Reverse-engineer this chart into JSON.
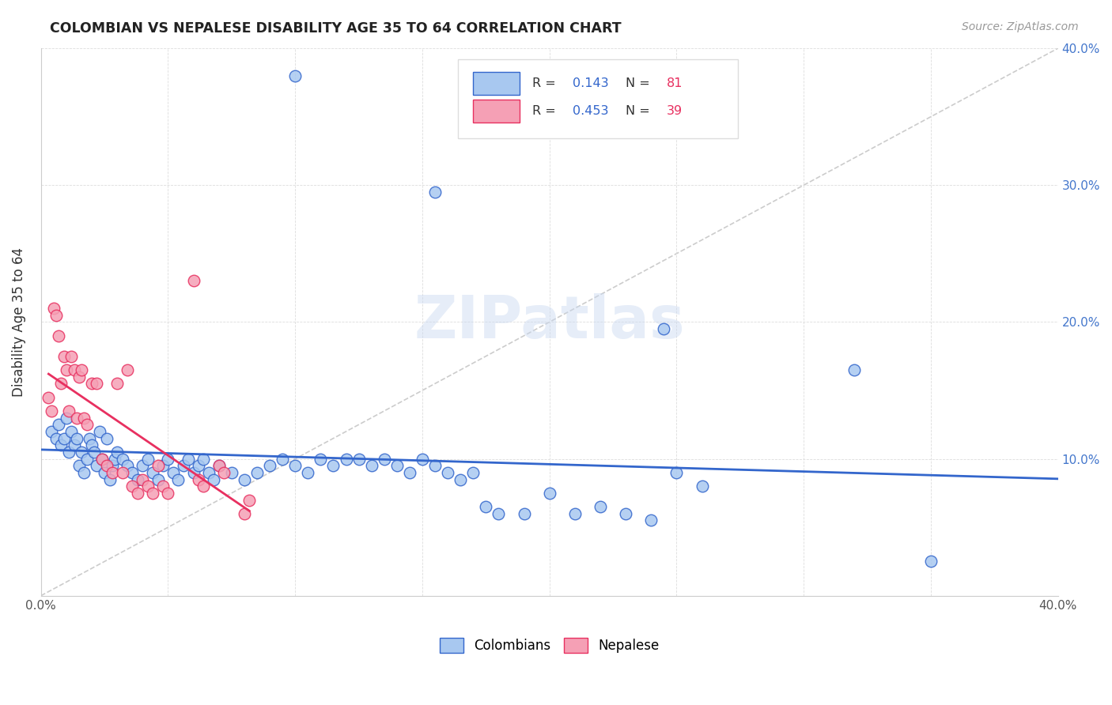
{
  "title": "COLOMBIAN VS NEPALESE DISABILITY AGE 35 TO 64 CORRELATION CHART",
  "source": "Source: ZipAtlas.com",
  "ylabel": "Disability Age 35 to 64",
  "xlim": [
    0.0,
    0.4
  ],
  "ylim": [
    0.0,
    0.4
  ],
  "legend_r1": "0.143",
  "legend_n1": "81",
  "legend_r2": "0.453",
  "legend_n2": "39",
  "color_colombian": "#A8C8F0",
  "color_nepalese": "#F5A0B5",
  "color_line_colombian": "#3366CC",
  "color_line_nepalese": "#E83060",
  "color_diagonal": "#CCCCCC",
  "colombian_x": [
    0.004,
    0.006,
    0.007,
    0.008,
    0.009,
    0.01,
    0.011,
    0.012,
    0.013,
    0.014,
    0.015,
    0.016,
    0.017,
    0.018,
    0.019,
    0.02,
    0.021,
    0.022,
    0.023,
    0.024,
    0.025,
    0.026,
    0.027,
    0.028,
    0.029,
    0.03,
    0.032,
    0.034,
    0.036,
    0.038,
    0.04,
    0.042,
    0.044,
    0.046,
    0.048,
    0.05,
    0.052,
    0.054,
    0.056,
    0.058,
    0.06,
    0.062,
    0.064,
    0.066,
    0.068,
    0.07,
    0.075,
    0.08,
    0.085,
    0.09,
    0.095,
    0.1,
    0.105,
    0.11,
    0.115,
    0.12,
    0.125,
    0.13,
    0.135,
    0.14,
    0.145,
    0.15,
    0.155,
    0.16,
    0.165,
    0.17,
    0.175,
    0.18,
    0.19,
    0.2,
    0.21,
    0.22,
    0.23,
    0.24,
    0.25,
    0.26,
    0.32,
    0.35,
    0.155,
    0.245,
    0.1
  ],
  "colombian_y": [
    0.12,
    0.115,
    0.125,
    0.11,
    0.115,
    0.13,
    0.105,
    0.12,
    0.11,
    0.115,
    0.095,
    0.105,
    0.09,
    0.1,
    0.115,
    0.11,
    0.105,
    0.095,
    0.12,
    0.1,
    0.09,
    0.115,
    0.085,
    0.095,
    0.1,
    0.105,
    0.1,
    0.095,
    0.09,
    0.085,
    0.095,
    0.1,
    0.09,
    0.085,
    0.095,
    0.1,
    0.09,
    0.085,
    0.095,
    0.1,
    0.09,
    0.095,
    0.1,
    0.09,
    0.085,
    0.095,
    0.09,
    0.085,
    0.09,
    0.095,
    0.1,
    0.095,
    0.09,
    0.1,
    0.095,
    0.1,
    0.1,
    0.095,
    0.1,
    0.095,
    0.09,
    0.1,
    0.095,
    0.09,
    0.085,
    0.09,
    0.065,
    0.06,
    0.06,
    0.075,
    0.06,
    0.065,
    0.06,
    0.055,
    0.09,
    0.08,
    0.165,
    0.025,
    0.295,
    0.195,
    0.38
  ],
  "nepalese_x": [
    0.003,
    0.004,
    0.005,
    0.006,
    0.007,
    0.008,
    0.009,
    0.01,
    0.011,
    0.012,
    0.013,
    0.014,
    0.015,
    0.016,
    0.017,
    0.018,
    0.02,
    0.022,
    0.024,
    0.026,
    0.028,
    0.03,
    0.032,
    0.034,
    0.036,
    0.038,
    0.04,
    0.042,
    0.044,
    0.046,
    0.048,
    0.05,
    0.06,
    0.062,
    0.064,
    0.07,
    0.072,
    0.08,
    0.082
  ],
  "nepalese_y": [
    0.145,
    0.135,
    0.21,
    0.205,
    0.19,
    0.155,
    0.175,
    0.165,
    0.135,
    0.175,
    0.165,
    0.13,
    0.16,
    0.165,
    0.13,
    0.125,
    0.155,
    0.155,
    0.1,
    0.095,
    0.09,
    0.155,
    0.09,
    0.165,
    0.08,
    0.075,
    0.085,
    0.08,
    0.075,
    0.095,
    0.08,
    0.075,
    0.23,
    0.085,
    0.08,
    0.095,
    0.09,
    0.06,
    0.07
  ]
}
